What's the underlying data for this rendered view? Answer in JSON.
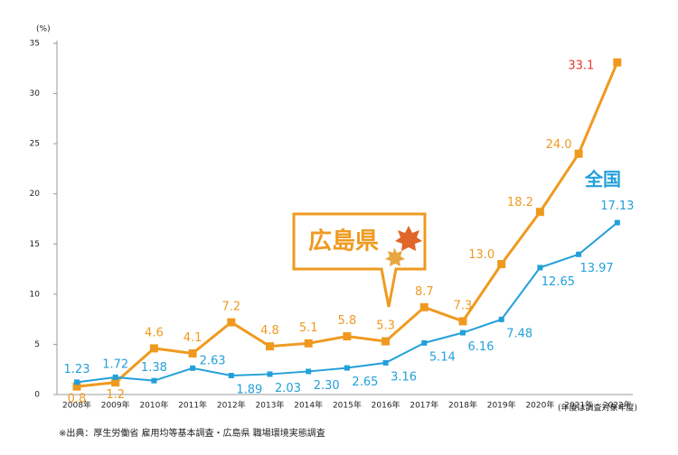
{
  "chart_data": {
    "type": "line",
    "y_label": "(%)",
    "categories": [
      "2008年",
      "2009年",
      "2010年",
      "2011年",
      "2012年",
      "2013年",
      "2014年",
      "2015年",
      "2016年",
      "2017年",
      "2018年",
      "2019年",
      "2020年",
      "2021年",
      "2022年"
    ],
    "series": [
      {
        "name": "広島県",
        "color": "#ef9a1f",
        "values": [
          0.8,
          1.2,
          4.6,
          4.1,
          7.2,
          4.8,
          5.1,
          5.8,
          5.3,
          8.7,
          7.3,
          13.0,
          18.2,
          24.0,
          33.1
        ],
        "value_labels": [
          "0.8",
          "1.2",
          "4.6",
          "4.1",
          "7.2",
          "4.8",
          "5.1",
          "5.8",
          "5.3",
          "8.7",
          "7.3",
          "13.0",
          "18.2",
          "24.0",
          "33.1"
        ]
      },
      {
        "name": "全国",
        "color": "#23a0d9",
        "values": [
          1.23,
          1.72,
          1.38,
          2.63,
          1.89,
          2.03,
          2.3,
          2.65,
          3.16,
          5.14,
          6.16,
          7.48,
          12.65,
          13.97,
          17.13
        ],
        "value_labels": [
          "1.23",
          "1.72",
          "1.38",
          "2.63",
          "1.89",
          "2.03",
          "2.30",
          "2.65",
          "3.16",
          "5.14",
          "6.16",
          "7.48",
          "12.65",
          "13.97",
          "17.13"
        ]
      }
    ],
    "ylim": [
      0,
      35
    ],
    "yticks": [
      0,
      5,
      10,
      15,
      20,
      25,
      30,
      35
    ],
    "grid": false,
    "x_note": "(年度は調査対象年度)",
    "source": "※出典：厚生労働省 雇用均等基本調査・広島県 職場環境実態調査"
  }
}
